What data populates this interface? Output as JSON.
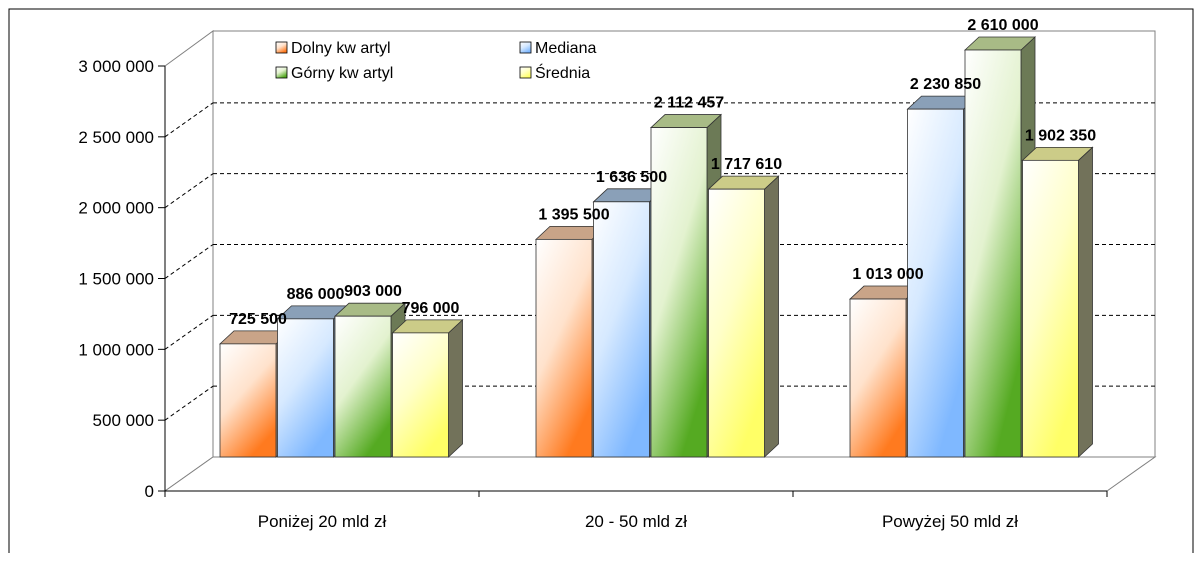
{
  "chart_data": {
    "type": "bar",
    "categories": [
      "Poniżej 20 mld zł",
      "20 - 50 mld zł",
      "Powyżej 50 mld zł"
    ],
    "series": [
      {
        "name": "Dolny kw artyl",
        "values": [
          725500,
          1395500,
          1013000
        ],
        "value_labels": [
          "725 500",
          "1 395 500",
          "1 013 000"
        ]
      },
      {
        "name": "Mediana",
        "values": [
          886000,
          1636500,
          2230850
        ],
        "value_labels": [
          "886 000",
          "1 636 500",
          "2 230 850"
        ]
      },
      {
        "name": "Górny kw artyl",
        "values": [
          903000,
          2112457,
          2610000
        ],
        "value_labels": [
          "903 000",
          "2 112 457",
          "2 610 000"
        ]
      },
      {
        "name": "Średnia",
        "values": [
          796000,
          1717610,
          1902350
        ],
        "value_labels": [
          "796 000",
          "1 717 610",
          "1 902 350"
        ]
      }
    ],
    "y_ticks": [
      "0",
      "500 000",
      "1 000 000",
      "1 500 000",
      "2 000 000",
      "2 500 000",
      "3 000 000"
    ],
    "ylim": [
      0,
      3000000
    ],
    "title": "",
    "xlabel": "",
    "ylabel": "",
    "grid": true,
    "legend_position": "top-left",
    "colors": {
      "Dolny kw artyl": "#ff8a3c",
      "Mediana": "#99ccff",
      "Górny kw artyl": "#66bb33",
      "Średnia": "#ffff80"
    }
  }
}
